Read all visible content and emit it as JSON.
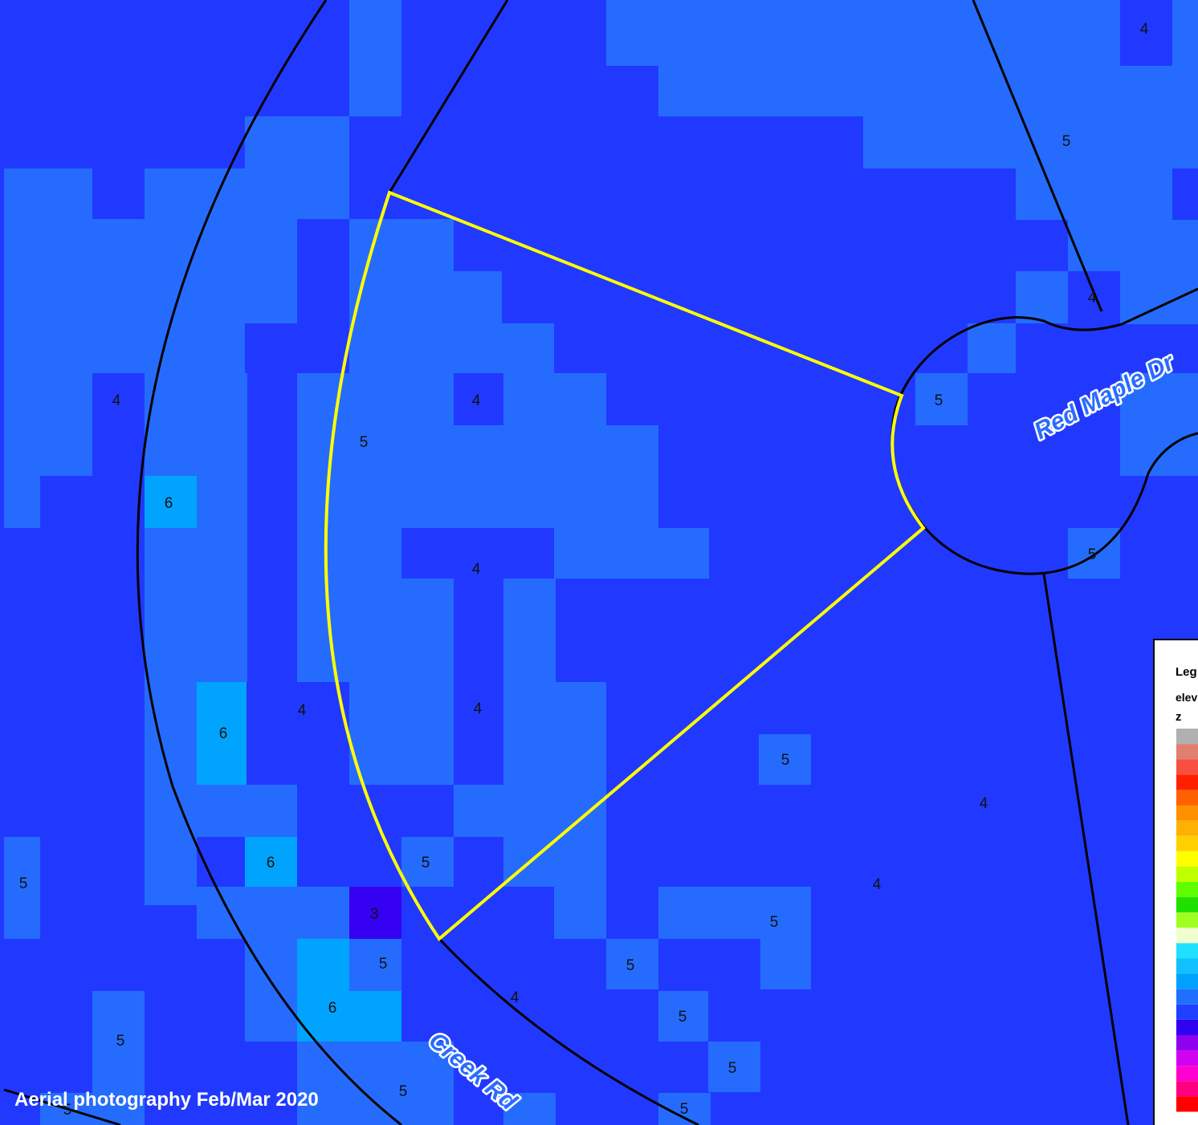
{
  "colors": {
    "base": "#2139fe",
    "cell_5": "#256cfe",
    "cell_6": "#00a4fe",
    "cell_3": "#3600f2",
    "lot_outline": "#ffff00",
    "road_line": "#000000",
    "road_label_fill": "#2a6cff"
  },
  "map": {
    "credit": "Aerial photography Feb/Mar 2020",
    "roads": [
      {
        "name": "Red Maple Dr"
      },
      {
        "name": "Creek Rd"
      }
    ],
    "cell_labels": [
      {
        "value": "4"
      },
      {
        "value": "5"
      },
      {
        "value": "4"
      },
      {
        "value": "4"
      },
      {
        "value": "4"
      },
      {
        "value": "5"
      },
      {
        "value": "5"
      },
      {
        "value": "6"
      },
      {
        "value": "4"
      },
      {
        "value": "5"
      },
      {
        "value": "4"
      },
      {
        "value": "6"
      },
      {
        "value": "4"
      },
      {
        "value": "4"
      },
      {
        "value": "5"
      },
      {
        "value": "4"
      },
      {
        "value": "5"
      },
      {
        "value": "6"
      },
      {
        "value": "5"
      },
      {
        "value": "3"
      },
      {
        "value": "5"
      },
      {
        "value": "5"
      },
      {
        "value": "5"
      },
      {
        "value": "6"
      },
      {
        "value": "4"
      },
      {
        "value": "5"
      },
      {
        "value": "5"
      },
      {
        "value": "5"
      },
      {
        "value": "5"
      },
      {
        "value": "5"
      },
      {
        "value": "5"
      }
    ]
  },
  "legend": {
    "title": "Leg",
    "subtitle": "elev",
    "field": "z",
    "swatches": [
      "#b0b0b0",
      "#e08070",
      "#f85040",
      "#ff2000",
      "#ff6000",
      "#ff9000",
      "#ffb000",
      "#ffd000",
      "#ffff00",
      "#c0ff00",
      "#60ff00",
      "#20e000",
      "#a0ff20",
      "#f0ffd0",
      "#20e0ff",
      "#10c0ff",
      "#00a0ff",
      "#2070ff",
      "#2040ff",
      "#3000f0",
      "#9000f0",
      "#d000f0",
      "#ff00d0",
      "#ff0080",
      "#ff0000"
    ]
  }
}
